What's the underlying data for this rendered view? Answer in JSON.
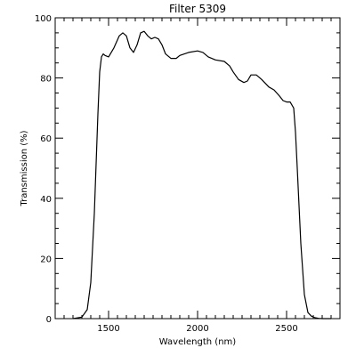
{
  "chart_data": {
    "type": "line",
    "title": "Filter 5309",
    "xlabel": "Wavelength (nm)",
    "ylabel": "Transmission (%)",
    "xlim": [
      1200,
      2800
    ],
    "ylim": [
      0,
      100
    ],
    "grid": false,
    "x_ticks": [
      1500,
      2000,
      2500
    ],
    "x_tick_labels": [
      "1500",
      "2000",
      "2500"
    ],
    "x_minor_step": 50,
    "y_ticks": [
      0,
      20,
      40,
      60,
      80,
      100
    ],
    "y_tick_labels": [
      "0",
      "20",
      "40",
      "60",
      "80",
      "100"
    ],
    "y_minor_step": 5,
    "colors": {
      "line": "#000000",
      "axes": "#000000",
      "background": "#ffffff"
    },
    "series": [
      {
        "x": [
          1300,
          1350,
          1380,
          1400,
          1420,
          1440,
          1450,
          1460,
          1470,
          1480,
          1500,
          1530,
          1560,
          1580,
          1600,
          1620,
          1640,
          1660,
          1680,
          1700,
          1720,
          1740,
          1760,
          1780,
          1800,
          1820,
          1850,
          1880,
          1900,
          1950,
          2000,
          2030,
          2060,
          2100,
          2150,
          2180,
          2200,
          2230,
          2260,
          2280,
          2300,
          2330,
          2360,
          2400,
          2430,
          2460,
          2480,
          2500,
          2520,
          2540,
          2550,
          2560,
          2580,
          2600,
          2620,
          2640,
          2660,
          2680,
          2700,
          2750
        ],
        "y": [
          0,
          0.5,
          3,
          12,
          35,
          68,
          82,
          87,
          88,
          87.5,
          87,
          90,
          94,
          95,
          94,
          90,
          88.5,
          91,
          95,
          95.5,
          94,
          93,
          93.5,
          93,
          91,
          88,
          86.5,
          86.5,
          87.5,
          88.5,
          89,
          88.5,
          87,
          86,
          85.5,
          84,
          82,
          79.5,
          78.5,
          79,
          81,
          81,
          79.5,
          77,
          76,
          74,
          72.5,
          72,
          72,
          70,
          62,
          50,
          25,
          8,
          2,
          0.8,
          0.3,
          0.1,
          0,
          0
        ]
      }
    ]
  }
}
